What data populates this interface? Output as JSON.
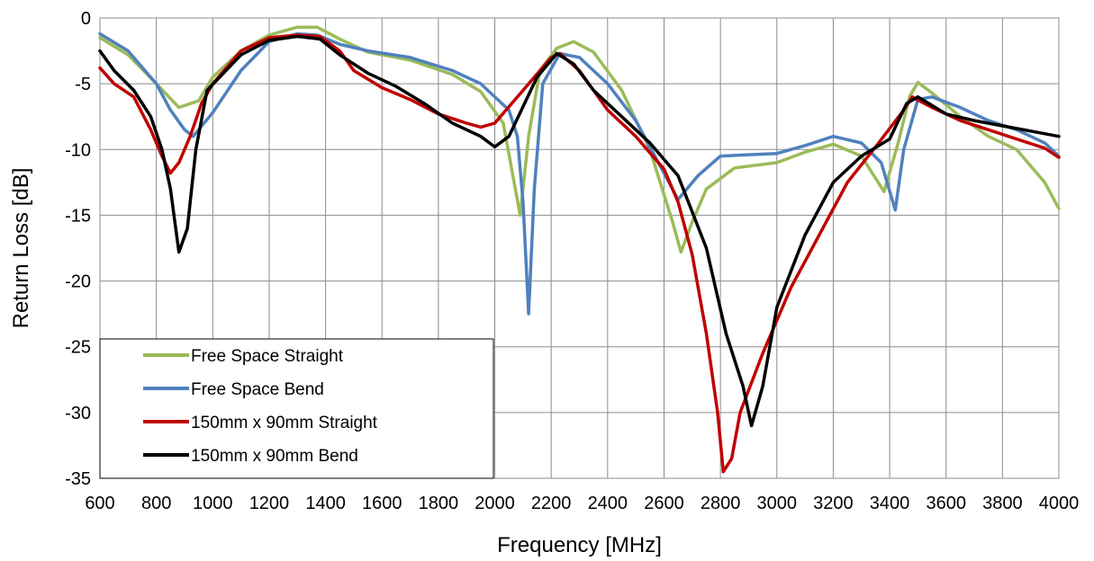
{
  "chart_data": {
    "type": "line",
    "title": "",
    "xlabel": "Frequency [MHz]",
    "ylabel": "Return Loss [dB]",
    "xlim": [
      600,
      4000
    ],
    "ylim": [
      -35,
      0
    ],
    "xticks": [
      600,
      800,
      1000,
      1200,
      1400,
      1600,
      1800,
      2000,
      2200,
      2400,
      2600,
      2800,
      3000,
      3200,
      3400,
      3600,
      3800,
      4000
    ],
    "yticks": [
      0,
      -5,
      -10,
      -15,
      -20,
      -25,
      -30,
      -35
    ],
    "grid": true,
    "legend_position": "bottom-left",
    "series": [
      {
        "name": "Free Space Straight",
        "color": "#9bbb59",
        "points": [
          [
            600,
            -1.5
          ],
          [
            700,
            -2.8
          ],
          [
            800,
            -5.0
          ],
          [
            880,
            -6.8
          ],
          [
            950,
            -6.3
          ],
          [
            1000,
            -4.5
          ],
          [
            1100,
            -2.5
          ],
          [
            1200,
            -1.3
          ],
          [
            1300,
            -0.7
          ],
          [
            1370,
            -0.7
          ],
          [
            1450,
            -1.6
          ],
          [
            1550,
            -2.6
          ],
          [
            1700,
            -3.2
          ],
          [
            1850,
            -4.3
          ],
          [
            1950,
            -5.6
          ],
          [
            2030,
            -8.0
          ],
          [
            2060,
            -11.5
          ],
          [
            2090,
            -15.0
          ],
          [
            2120,
            -9.0
          ],
          [
            2160,
            -4.0
          ],
          [
            2220,
            -2.3
          ],
          [
            2280,
            -1.8
          ],
          [
            2350,
            -2.6
          ],
          [
            2450,
            -5.5
          ],
          [
            2550,
            -10.0
          ],
          [
            2630,
            -15.5
          ],
          [
            2660,
            -17.8
          ],
          [
            2700,
            -15.5
          ],
          [
            2750,
            -13.0
          ],
          [
            2850,
            -11.4
          ],
          [
            3000,
            -11.0
          ],
          [
            3100,
            -10.2
          ],
          [
            3200,
            -9.6
          ],
          [
            3300,
            -10.5
          ],
          [
            3380,
            -13.2
          ],
          [
            3430,
            -9.5
          ],
          [
            3470,
            -6.0
          ],
          [
            3500,
            -4.9
          ],
          [
            3550,
            -5.7
          ],
          [
            3650,
            -7.5
          ],
          [
            3750,
            -9.0
          ],
          [
            3850,
            -10.0
          ],
          [
            3950,
            -12.5
          ],
          [
            4000,
            -14.5
          ]
        ]
      },
      {
        "name": "Free Space Bend",
        "color": "#4f81bd",
        "points": [
          [
            600,
            -1.2
          ],
          [
            700,
            -2.5
          ],
          [
            800,
            -5.0
          ],
          [
            850,
            -7.0
          ],
          [
            900,
            -8.5
          ],
          [
            930,
            -9.0
          ],
          [
            1000,
            -7.2
          ],
          [
            1100,
            -4.0
          ],
          [
            1200,
            -1.8
          ],
          [
            1300,
            -1.2
          ],
          [
            1370,
            -1.3
          ],
          [
            1450,
            -2.0
          ],
          [
            1550,
            -2.5
          ],
          [
            1700,
            -3.0
          ],
          [
            1850,
            -4.0
          ],
          [
            1950,
            -5.0
          ],
          [
            2050,
            -7.0
          ],
          [
            2080,
            -9.0
          ],
          [
            2100,
            -14.0
          ],
          [
            2120,
            -22.5
          ],
          [
            2140,
            -13.0
          ],
          [
            2170,
            -5.0
          ],
          [
            2230,
            -2.7
          ],
          [
            2300,
            -3.0
          ],
          [
            2400,
            -5.0
          ],
          [
            2500,
            -7.8
          ],
          [
            2580,
            -11.0
          ],
          [
            2650,
            -13.8
          ],
          [
            2720,
            -12.0
          ],
          [
            2800,
            -10.5
          ],
          [
            2900,
            -10.4
          ],
          [
            3000,
            -10.3
          ],
          [
            3100,
            -9.7
          ],
          [
            3200,
            -9.0
          ],
          [
            3300,
            -9.5
          ],
          [
            3370,
            -11.0
          ],
          [
            3420,
            -14.6
          ],
          [
            3450,
            -10.0
          ],
          [
            3500,
            -6.2
          ],
          [
            3550,
            -6.0
          ],
          [
            3650,
            -6.8
          ],
          [
            3750,
            -7.8
          ],
          [
            3850,
            -8.5
          ],
          [
            3950,
            -9.5
          ],
          [
            4000,
            -10.5
          ]
        ]
      },
      {
        "name": "150mm x 90mm Straight",
        "color": "#c00000",
        "points": [
          [
            600,
            -3.8
          ],
          [
            650,
            -5.0
          ],
          [
            720,
            -6.0
          ],
          [
            780,
            -8.5
          ],
          [
            820,
            -10.5
          ],
          [
            850,
            -11.8
          ],
          [
            880,
            -11.0
          ],
          [
            920,
            -9.0
          ],
          [
            960,
            -6.5
          ],
          [
            1000,
            -5.0
          ],
          [
            1100,
            -2.5
          ],
          [
            1200,
            -1.5
          ],
          [
            1300,
            -1.3
          ],
          [
            1380,
            -1.4
          ],
          [
            1450,
            -2.5
          ],
          [
            1500,
            -4.0
          ],
          [
            1600,
            -5.3
          ],
          [
            1700,
            -6.2
          ],
          [
            1800,
            -7.3
          ],
          [
            1900,
            -8.0
          ],
          [
            1950,
            -8.3
          ],
          [
            2000,
            -8.0
          ],
          [
            2100,
            -5.5
          ],
          [
            2200,
            -3.0
          ],
          [
            2230,
            -2.7
          ],
          [
            2300,
            -4.0
          ],
          [
            2400,
            -7.0
          ],
          [
            2500,
            -9.0
          ],
          [
            2600,
            -11.5
          ],
          [
            2650,
            -14.0
          ],
          [
            2700,
            -18.0
          ],
          [
            2750,
            -24.0
          ],
          [
            2790,
            -30.0
          ],
          [
            2810,
            -34.5
          ],
          [
            2840,
            -33.5
          ],
          [
            2870,
            -30.0
          ],
          [
            2950,
            -25.5
          ],
          [
            3050,
            -20.5
          ],
          [
            3150,
            -16.5
          ],
          [
            3250,
            -12.5
          ],
          [
            3350,
            -9.8
          ],
          [
            3450,
            -7.0
          ],
          [
            3480,
            -6.0
          ],
          [
            3550,
            -6.8
          ],
          [
            3650,
            -7.8
          ],
          [
            3750,
            -8.5
          ],
          [
            3850,
            -9.2
          ],
          [
            3950,
            -9.9
          ],
          [
            4000,
            -10.6
          ]
        ]
      },
      {
        "name": "150mm x 90mm Bend",
        "color": "#000000",
        "points": [
          [
            600,
            -2.5
          ],
          [
            650,
            -4.0
          ],
          [
            720,
            -5.5
          ],
          [
            780,
            -7.5
          ],
          [
            820,
            -10.0
          ],
          [
            850,
            -13.0
          ],
          [
            880,
            -17.8
          ],
          [
            910,
            -16.0
          ],
          [
            940,
            -10.0
          ],
          [
            980,
            -5.5
          ],
          [
            1100,
            -2.8
          ],
          [
            1200,
            -1.7
          ],
          [
            1300,
            -1.4
          ],
          [
            1380,
            -1.6
          ],
          [
            1450,
            -2.8
          ],
          [
            1550,
            -4.2
          ],
          [
            1650,
            -5.2
          ],
          [
            1750,
            -6.5
          ],
          [
            1850,
            -8.0
          ],
          [
            1950,
            -9.0
          ],
          [
            2000,
            -9.8
          ],
          [
            2050,
            -9.0
          ],
          [
            2150,
            -4.5
          ],
          [
            2220,
            -2.7
          ],
          [
            2280,
            -3.5
          ],
          [
            2350,
            -5.5
          ],
          [
            2450,
            -7.5
          ],
          [
            2550,
            -9.5
          ],
          [
            2650,
            -12.0
          ],
          [
            2750,
            -17.5
          ],
          [
            2820,
            -24.0
          ],
          [
            2880,
            -28.0
          ],
          [
            2910,
            -31.0
          ],
          [
            2950,
            -28.0
          ],
          [
            3000,
            -22.0
          ],
          [
            3100,
            -16.5
          ],
          [
            3200,
            -12.5
          ],
          [
            3300,
            -10.5
          ],
          [
            3400,
            -9.2
          ],
          [
            3460,
            -6.5
          ],
          [
            3500,
            -6.0
          ],
          [
            3600,
            -7.3
          ],
          [
            3700,
            -7.8
          ],
          [
            3800,
            -8.2
          ],
          [
            3900,
            -8.6
          ],
          [
            4000,
            -9.0
          ]
        ]
      }
    ]
  }
}
